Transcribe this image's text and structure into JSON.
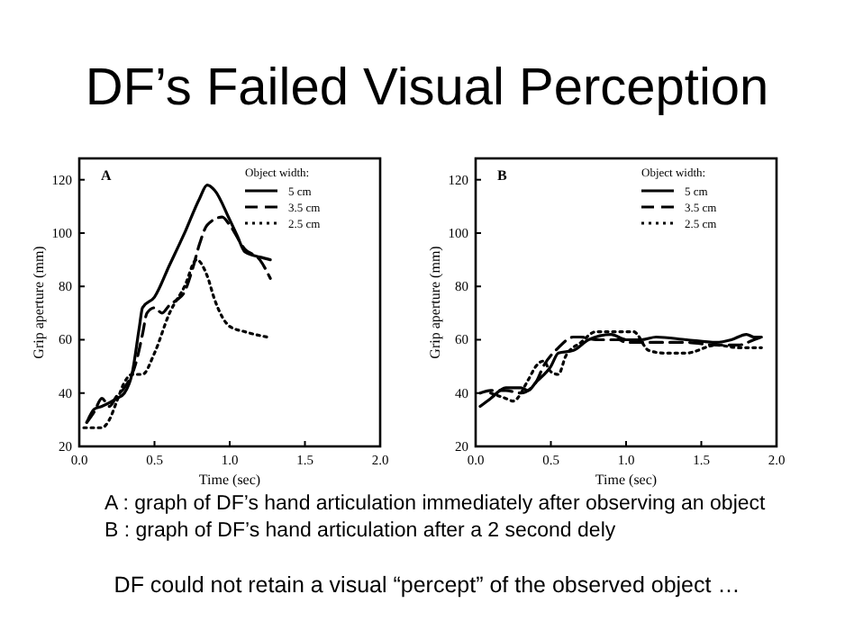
{
  "chart_data": [
    {
      "type": "other",
      "title": "DF’s Failed Visual Perception",
      "annotations": [
        "A : graph of DF’s hand articulation immediately after observing an object",
        "B : graph of DF’s hand articulation after a 2 second dely",
        "DF could not retain a visual “percept” of the observed object …"
      ]
    },
    {
      "type": "line",
      "title": "A",
      "xlabel": "Time (sec)",
      "ylabel": "Grip aperture (mm)",
      "legend_title": "Object width:",
      "legend": "top right",
      "grid": false,
      "xlim": [
        0,
        2
      ],
      "ylim": [
        20,
        128
      ],
      "xticks": [
        {
          "value": 0,
          "label": "0.0"
        },
        {
          "value": 0.5,
          "label": "0.5"
        },
        {
          "value": 1,
          "label": "1.0"
        },
        {
          "value": 1.5,
          "label": "1.5"
        },
        {
          "value": 2,
          "label": "2.0"
        }
      ],
      "yticks": [
        20,
        40,
        60,
        80,
        100,
        120
      ],
      "series": [
        {
          "name": "5 cm",
          "color": "#000000",
          "line_style": "solid",
          "x": [
            0.05,
            0.1,
            0.15,
            0.25,
            0.3,
            0.35,
            0.4,
            0.42,
            0.5,
            0.6,
            0.7,
            0.8,
            0.85,
            0.9,
            1.0,
            1.05,
            1.1,
            1.2,
            1.27
          ],
          "values": [
            29,
            34,
            35,
            38,
            40,
            47,
            65,
            72,
            76,
            88,
            100,
            113,
            118,
            116,
            105,
            99,
            93,
            91,
            90
          ]
        },
        {
          "name": "3.5 cm",
          "color": "#000000",
          "line_style": "dashed",
          "x": [
            0.05,
            0.1,
            0.15,
            0.2,
            0.25,
            0.3,
            0.38,
            0.42,
            0.45,
            0.5,
            0.55,
            0.6,
            0.65,
            0.7,
            0.75,
            0.8,
            0.85,
            0.95,
            1.0,
            1.1,
            1.2,
            1.27
          ],
          "values": [
            29,
            33,
            38,
            35,
            39,
            42,
            52,
            62,
            70,
            72,
            70,
            73,
            75,
            78,
            86,
            96,
            103,
            106,
            103,
            94,
            90,
            83
          ]
        },
        {
          "name": "2.5 cm",
          "color": "#000000",
          "line_style": "dotted",
          "x": [
            0.03,
            0.15,
            0.2,
            0.25,
            0.3,
            0.35,
            0.42,
            0.5,
            0.6,
            0.7,
            0.78,
            0.85,
            0.9,
            1.0,
            1.1,
            1.25
          ],
          "values": [
            27,
            27,
            30,
            37,
            44,
            47,
            47,
            55,
            70,
            80,
            90,
            84,
            75,
            65,
            63,
            61
          ]
        }
      ]
    },
    {
      "type": "line",
      "title": "B",
      "xlabel": "Time (sec)",
      "ylabel": "Grip aperture (mm)",
      "legend_title": "Object width:",
      "legend": "top right",
      "grid": false,
      "xlim": [
        0,
        2
      ],
      "ylim": [
        20,
        128
      ],
      "xticks": [
        {
          "value": 0,
          "label": "0.0"
        },
        {
          "value": 0.5,
          "label": "0.5"
        },
        {
          "value": 1,
          "label": "1.0"
        },
        {
          "value": 1.5,
          "label": "1.5"
        },
        {
          "value": 2,
          "label": "2.0"
        }
      ],
      "yticks": [
        20,
        40,
        60,
        80,
        100,
        120
      ],
      "series": [
        {
          "name": "5 cm",
          "color": "#000000",
          "line_style": "solid",
          "x": [
            0.03,
            0.1,
            0.2,
            0.3,
            0.35,
            0.4,
            0.5,
            0.55,
            0.65,
            0.75,
            0.9,
            1.0,
            1.1,
            1.2,
            1.4,
            1.6,
            1.7,
            1.8,
            1.85,
            1.9
          ],
          "values": [
            35,
            38,
            42,
            42,
            41,
            44,
            50,
            55,
            56,
            60,
            62,
            60,
            60,
            61,
            60,
            59,
            60,
            62,
            61,
            61
          ]
        },
        {
          "name": "3.5 cm",
          "color": "#000000",
          "line_style": "dashed",
          "x": [
            0.03,
            0.1,
            0.2,
            0.3,
            0.4,
            0.45,
            0.55,
            0.65,
            0.7,
            0.8,
            0.95,
            1.0,
            1.2,
            1.4,
            1.6,
            1.75,
            1.85,
            1.9
          ],
          "values": [
            40,
            41,
            41,
            40,
            44,
            50,
            57,
            61,
            61,
            60,
            60,
            59,
            59,
            59,
            58,
            58,
            60,
            61
          ]
        },
        {
          "name": "2.5 cm",
          "color": "#000000",
          "line_style": "dotted",
          "x": [
            0.1,
            0.2,
            0.25,
            0.35,
            0.4,
            0.45,
            0.5,
            0.55,
            0.6,
            0.7,
            0.8,
            0.9,
            1.05,
            1.15,
            1.25,
            1.4,
            1.6,
            1.75,
            1.9
          ],
          "values": [
            40,
            38,
            37,
            45,
            50,
            52,
            48,
            47,
            54,
            59,
            63,
            63,
            63,
            56,
            55,
            55,
            58,
            57,
            57
          ]
        }
      ]
    }
  ]
}
